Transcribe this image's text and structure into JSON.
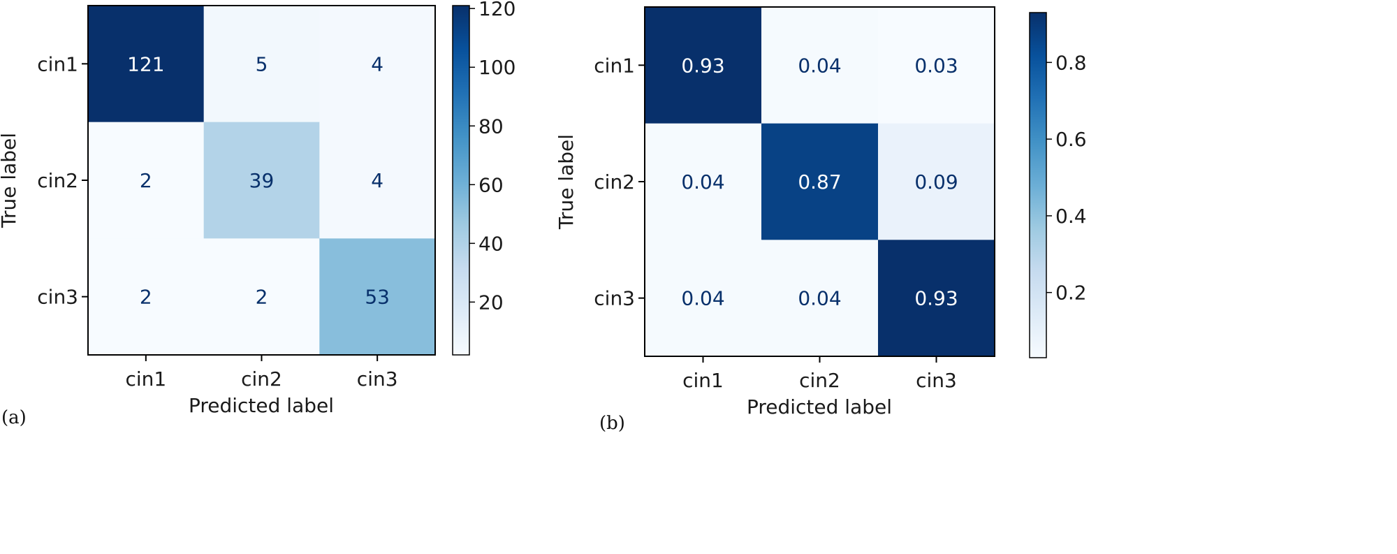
{
  "chart_data": [
    {
      "type": "heatmap",
      "panel_label": "(a)",
      "xlabel": "Predicted label",
      "ylabel": "True label",
      "x_categories": [
        "cin1",
        "cin2",
        "cin3"
      ],
      "y_categories": [
        "cin1",
        "cin2",
        "cin3"
      ],
      "values": [
        [
          121,
          5,
          4
        ],
        [
          2,
          39,
          4
        ],
        [
          2,
          2,
          53
        ]
      ],
      "value_labels": [
        [
          "121",
          "5",
          "4"
        ],
        [
          "2",
          "39",
          "4"
        ],
        [
          "2",
          "2",
          "53"
        ]
      ],
      "colormap": "Blues",
      "colorbar": {
        "min": 2,
        "max": 121,
        "ticks": [
          20,
          40,
          60,
          80,
          100,
          120
        ],
        "tick_labels": [
          "20",
          "40",
          "60",
          "80",
          "100",
          "120"
        ]
      }
    },
    {
      "type": "heatmap",
      "panel_label": "(b)",
      "xlabel": "Predicted label",
      "ylabel": "True label",
      "x_categories": [
        "cin1",
        "cin2",
        "cin3"
      ],
      "y_categories": [
        "cin1",
        "cin2",
        "cin3"
      ],
      "values": [
        [
          0.93,
          0.04,
          0.03
        ],
        [
          0.04,
          0.87,
          0.09
        ],
        [
          0.04,
          0.04,
          0.93
        ]
      ],
      "value_labels": [
        [
          "0.93",
          "0.04",
          "0.03"
        ],
        [
          "0.04",
          "0.87",
          "0.09"
        ],
        [
          "0.04",
          "0.04",
          "0.93"
        ]
      ],
      "colormap": "Blues",
      "colorbar": {
        "min": 0.03,
        "max": 0.93,
        "ticks": [
          0.2,
          0.4,
          0.6,
          0.8
        ],
        "tick_labels": [
          "0.2",
          "0.4",
          "0.6",
          "0.8"
        ]
      }
    }
  ],
  "colors": {
    "blues_low": "#f7fbff",
    "blues_high": "#08306b",
    "text_dark": "#08306b",
    "text_light": "#ffffff"
  }
}
